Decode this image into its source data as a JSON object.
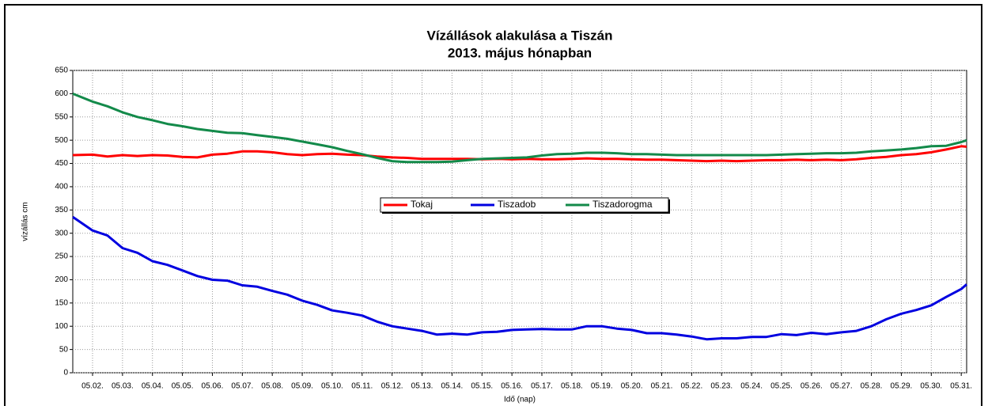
{
  "chart_data": {
    "type": "line",
    "title": "Vízállások alakulása a Tiszán",
    "subtitle": "2013. május hónapban",
    "x_label": "Idő (nap)",
    "y_label": "vízállás cm",
    "x": [
      1.34,
      2,
      2.5,
      3,
      3.5,
      4,
      4.5,
      5,
      5.5,
      6,
      6.5,
      7,
      7.5,
      8,
      8.5,
      9,
      9.5,
      10,
      10.5,
      11,
      11.5,
      12,
      12.5,
      13,
      13.5,
      14,
      14.5,
      15,
      15.5,
      16,
      16.5,
      17,
      17.5,
      18,
      18.5,
      19,
      19.5,
      20,
      20.5,
      21,
      21.5,
      22,
      22.5,
      23,
      23.5,
      24,
      24.5,
      25,
      25.5,
      26,
      26.5,
      27,
      27.5,
      28,
      28.5,
      29,
      29.5,
      30,
      30.5,
      31,
      31.18
    ],
    "series": [
      {
        "name": "Tokaj",
        "color": "#ff0000",
        "values": [
          468,
          469,
          465,
          468,
          466,
          468,
          467,
          464,
          463,
          469,
          471,
          476,
          476,
          474,
          470,
          468,
          470,
          471,
          469,
          468,
          465,
          463,
          462,
          460,
          460,
          460,
          460,
          459,
          460,
          459,
          460,
          459,
          459,
          460,
          461,
          460,
          460,
          459,
          458,
          458,
          457,
          456,
          455,
          456,
          455,
          456,
          457,
          457,
          458,
          457,
          458,
          457,
          459,
          462,
          464,
          468,
          470,
          474,
          480,
          487,
          486
        ]
      },
      {
        "name": "Tiszadob",
        "color": "#0000e0",
        "values": [
          335,
          306,
          295,
          268,
          258,
          240,
          232,
          220,
          208,
          200,
          198,
          188,
          185,
          176,
          168,
          155,
          146,
          134,
          129,
          123,
          110,
          100,
          95,
          90,
          82,
          84,
          82,
          87,
          88,
          92,
          93,
          94,
          93,
          93,
          100,
          100,
          95,
          92,
          85,
          85,
          82,
          78,
          72,
          74,
          74,
          77,
          77,
          83,
          81,
          86,
          83,
          87,
          90,
          100,
          115,
          127,
          135,
          145,
          163,
          180,
          190
        ]
      },
      {
        "name": "Tiszadorogma",
        "color": "#138a4a",
        "values": [
          600,
          583,
          573,
          560,
          550,
          543,
          535,
          530,
          524,
          520,
          516,
          515,
          511,
          507,
          503,
          497,
          491,
          485,
          477,
          470,
          462,
          455,
          453,
          453,
          453,
          454,
          457,
          460,
          461,
          462,
          463,
          467,
          470,
          471,
          473,
          473,
          472,
          470,
          470,
          469,
          468,
          468,
          468,
          468,
          468,
          468,
          468,
          469,
          470,
          471,
          472,
          472,
          473,
          476,
          478,
          480,
          483,
          487,
          488,
          496,
          500
        ]
      }
    ],
    "xlim": [
      1.34,
      31.18
    ],
    "xticks": [
      {
        "value": 2,
        "label": "05.02."
      },
      {
        "value": 3,
        "label": "05.03."
      },
      {
        "value": 4,
        "label": "05.04."
      },
      {
        "value": 5,
        "label": "05.05."
      },
      {
        "value": 6,
        "label": "05.06."
      },
      {
        "value": 7,
        "label": "05.07."
      },
      {
        "value": 8,
        "label": "05.08."
      },
      {
        "value": 9,
        "label": "05.09."
      },
      {
        "value": 10,
        "label": "05.10."
      },
      {
        "value": 11,
        "label": "05.11."
      },
      {
        "value": 12,
        "label": "05.12."
      },
      {
        "value": 13,
        "label": "05.13."
      },
      {
        "value": 14,
        "label": "05.14."
      },
      {
        "value": 15,
        "label": "05.15."
      },
      {
        "value": 16,
        "label": "05.16."
      },
      {
        "value": 17,
        "label": "05.17."
      },
      {
        "value": 18,
        "label": "05.18."
      },
      {
        "value": 19,
        "label": "05.19."
      },
      {
        "value": 20,
        "label": "05.20."
      },
      {
        "value": 21,
        "label": "05.21."
      },
      {
        "value": 22,
        "label": "05.22."
      },
      {
        "value": 23,
        "label": "05.23."
      },
      {
        "value": 24,
        "label": "05.24."
      },
      {
        "value": 25,
        "label": "05.25."
      },
      {
        "value": 26,
        "label": "05.26."
      },
      {
        "value": 27,
        "label": "05.27."
      },
      {
        "value": 28,
        "label": "05.28."
      },
      {
        "value": 29,
        "label": "05.29."
      },
      {
        "value": 30,
        "label": "05.30."
      },
      {
        "value": 31,
        "label": "05.31."
      }
    ],
    "ylim": [
      0,
      650
    ],
    "yticks": [
      0,
      50,
      100,
      150,
      200,
      250,
      300,
      350,
      400,
      450,
      500,
      550,
      600,
      650
    ],
    "grid": true,
    "legend": "center"
  }
}
